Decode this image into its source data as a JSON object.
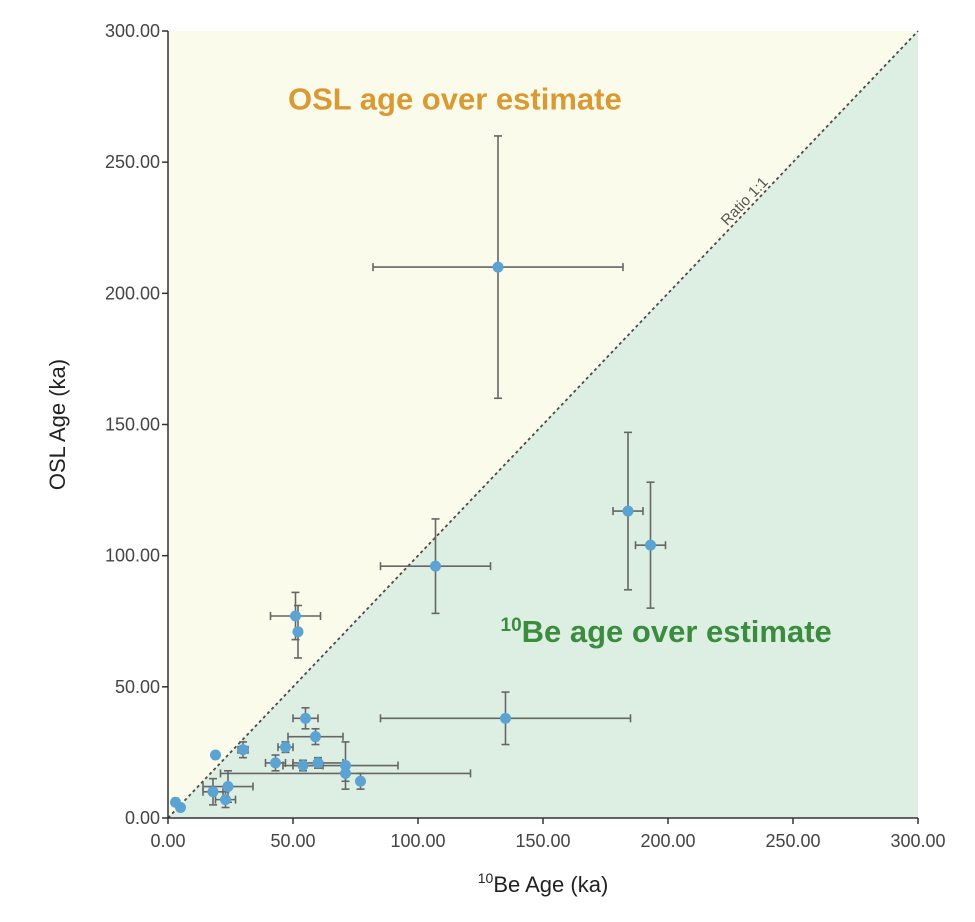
{
  "chart_data": {
    "type": "scatter",
    "title": "",
    "xlabel_sup": "10",
    "xlabel": "Be Age (ka)",
    "ylabel": "OSL Age (ka)",
    "xlim": [
      0,
      300
    ],
    "ylim": [
      0,
      300
    ],
    "x_ticks": [
      "0.00",
      "50.00",
      "100.00",
      "150.00",
      "200.00",
      "250.00",
      "300.00"
    ],
    "y_ticks": [
      "0.00",
      "50.00",
      "100.00",
      "150.00",
      "200.00",
      "250.00",
      "300.00"
    ],
    "grid": false,
    "reference_line": {
      "label": "Ratio 1:1",
      "slope": 1
    },
    "regions": {
      "upper": {
        "label": "OSL age over estimate",
        "color": "#fbfbeb",
        "text_color": "#d99a33"
      },
      "lower": {
        "label_sup": "10",
        "label": "Be age over estimate",
        "color": "#ddefe3",
        "text_color": "#3b8c3e"
      }
    },
    "point_color": "#5ba3d3",
    "errorbar_color": "#666666",
    "points": [
      {
        "x": 3,
        "y": 6,
        "xerr": 1,
        "yerr": 1
      },
      {
        "x": 5,
        "y": 4,
        "xerr": 1,
        "yerr": 1
      },
      {
        "x": 18,
        "y": 10,
        "xerr": 4,
        "yerr": 5
      },
      {
        "x": 19,
        "y": 24,
        "xerr": 0,
        "yerr": 0
      },
      {
        "x": 23,
        "y": 7,
        "xerr": 4,
        "yerr": 3
      },
      {
        "x": 24,
        "y": 12,
        "xerr": 10,
        "yerr": 6
      },
      {
        "x": 30,
        "y": 26,
        "xerr": 2,
        "yerr": 3
      },
      {
        "x": 43,
        "y": 21,
        "xerr": 4,
        "yerr": 3
      },
      {
        "x": 47,
        "y": 27,
        "xerr": 3,
        "yerr": 2
      },
      {
        "x": 51,
        "y": 77,
        "xerr": 10,
        "yerr": 9
      },
      {
        "x": 52,
        "y": 71,
        "xerr": 0,
        "yerr": 10
      },
      {
        "x": 54,
        "y": 20,
        "xerr": 8,
        "yerr": 2
      },
      {
        "x": 55,
        "y": 38,
        "xerr": 5,
        "yerr": 4
      },
      {
        "x": 59,
        "y": 31,
        "xerr": 11,
        "yerr": 3
      },
      {
        "x": 60,
        "y": 21,
        "xerr": 10,
        "yerr": 2
      },
      {
        "x": 71,
        "y": 20,
        "xerr": 21,
        "yerr": 9
      },
      {
        "x": 71,
        "y": 17,
        "xerr": 50,
        "yerr": 3
      },
      {
        "x": 77,
        "y": 14,
        "xerr": 0,
        "yerr": 3
      },
      {
        "x": 107,
        "y": 96,
        "xerr": 22,
        "yerr": 18
      },
      {
        "x": 132,
        "y": 210,
        "xerr": 50,
        "yerr": 50
      },
      {
        "x": 135,
        "y": 38,
        "xerr": 50,
        "yerr": 10
      },
      {
        "x": 184,
        "y": 117,
        "xerr": 6,
        "yerr": 30
      },
      {
        "x": 193,
        "y": 104,
        "xerr": 6,
        "yerr": 24
      }
    ]
  }
}
